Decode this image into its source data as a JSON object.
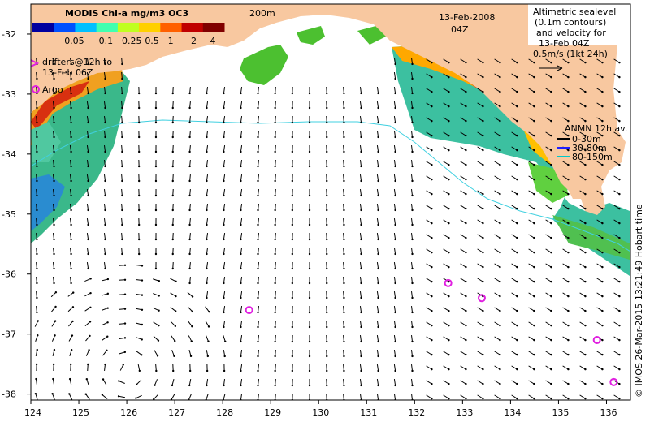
{
  "map": {
    "title": "MODIS Chl-a mg/m3 OC3",
    "date": "13-Feb-2008",
    "time": "04Z",
    "isobath_label": "200m",
    "colorbar_ticks": [
      "0.05",
      "0.1",
      "0.25",
      "0.5",
      "1",
      "2",
      "4"
    ],
    "colorbar_colors": [
      "#0000a0",
      "#0050ff",
      "#00c0ff",
      "#40ffb0",
      "#c0ff20",
      "#ffd000",
      "#ff6000",
      "#c00000",
      "#800000"
    ],
    "altimetry_note": [
      "Altimetric sealevel",
      "(0.1m contours)",
      "and velocity for",
      "13-Feb 04Z",
      "0.5m/s (1kt 24h)"
    ],
    "drifters_label": [
      "drifters@12h to",
      "13-Feb 06Z"
    ],
    "argo_label": "Argo",
    "anmn_title": "ANMN 12h av.",
    "anmn_depths": [
      "0-30m",
      "30-80m",
      "80-150m"
    ],
    "anmn_colors": [
      "#000000",
      "#2020ff",
      "#00c8c8"
    ],
    "credit": "© IMOS 26-Mar-2015 13:21:49 Hobart time",
    "x_ticks": [
      "124",
      "125",
      "126",
      "127",
      "128",
      "129",
      "130",
      "131",
      "132",
      "133",
      "134",
      "135",
      "136"
    ],
    "y_ticks": [
      "-32",
      "-33",
      "-34",
      "-35",
      "-36",
      "-37",
      "-38"
    ],
    "x_range": [
      124,
      136.5
    ],
    "y_range": [
      -38.1,
      -31.5
    ],
    "argo_floats": [
      {
        "lon": 128.55,
        "lat": -36.6
      },
      {
        "lon": 132.7,
        "lat": -36.15
      },
      {
        "lon": 133.4,
        "lat": -36.4
      },
      {
        "lon": 135.8,
        "lat": -37.1
      },
      {
        "lon": 136.15,
        "lat": -37.8
      }
    ],
    "land_color": "#f8c8a0"
  }
}
